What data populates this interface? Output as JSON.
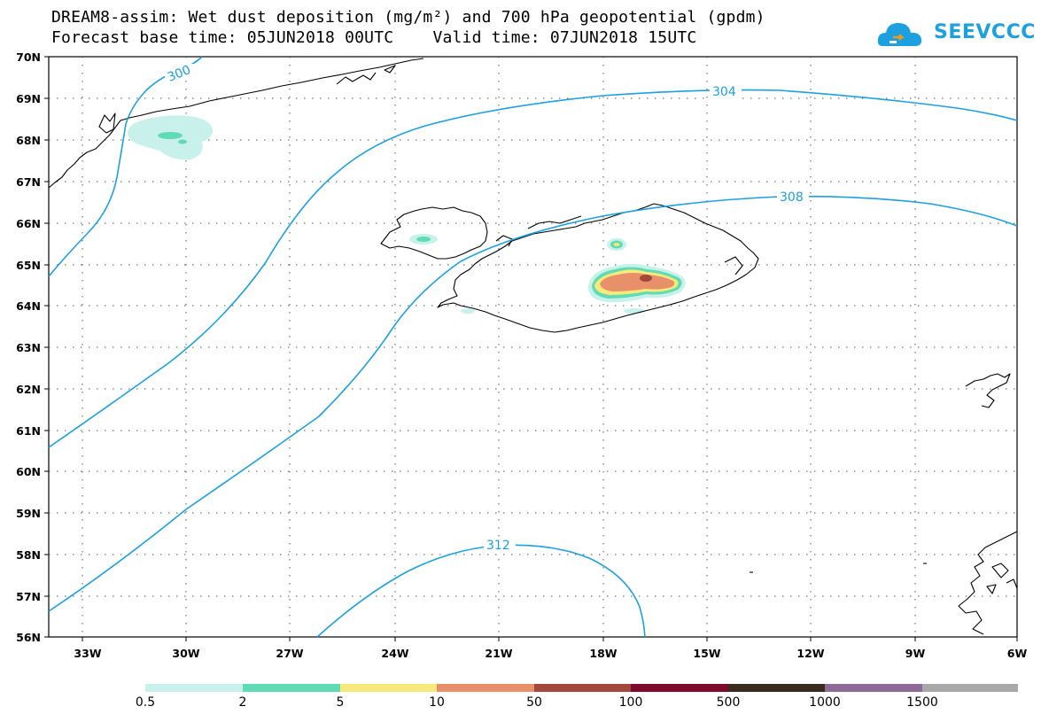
{
  "header": {
    "title_line1": "DREAM8-assim: Wet dust deposition (mg/m²) and 700 hPa geopotential (gpdm)",
    "title_line2": "Forecast base time: 05JUN2018 00UTC    Valid time: 07JUN2018 15UTC"
  },
  "logo": {
    "text": "SEEVCCC",
    "icon": "cloud-icon"
  },
  "map": {
    "lat_labels": [
      "70N",
      "69N",
      "68N",
      "67N",
      "66N",
      "65N",
      "64N",
      "63N",
      "62N",
      "61N",
      "60N",
      "59N",
      "58N",
      "57N",
      "56N"
    ],
    "lon_labels": [
      "33W",
      "30W",
      "27W",
      "24W",
      "21W",
      "18W",
      "15W",
      "12W",
      "9W",
      "6W"
    ],
    "isoline_labels": [
      "300",
      "304",
      "308",
      "312"
    ],
    "isoline_color": "#1ca0e0",
    "coastline_color": "#000000"
  },
  "colorbar": {
    "labels": [
      "0.5",
      "2",
      "5",
      "10",
      "50",
      "100",
      "500",
      "1000",
      "1500"
    ],
    "colors": [
      "#c7f1ea",
      "#5fdbb5",
      "#f7ea7a",
      "#e8906a",
      "#a4473d",
      "#7d0b2b",
      "#3b2a20",
      "#8e6b96",
      "#a8a8a8"
    ]
  }
}
